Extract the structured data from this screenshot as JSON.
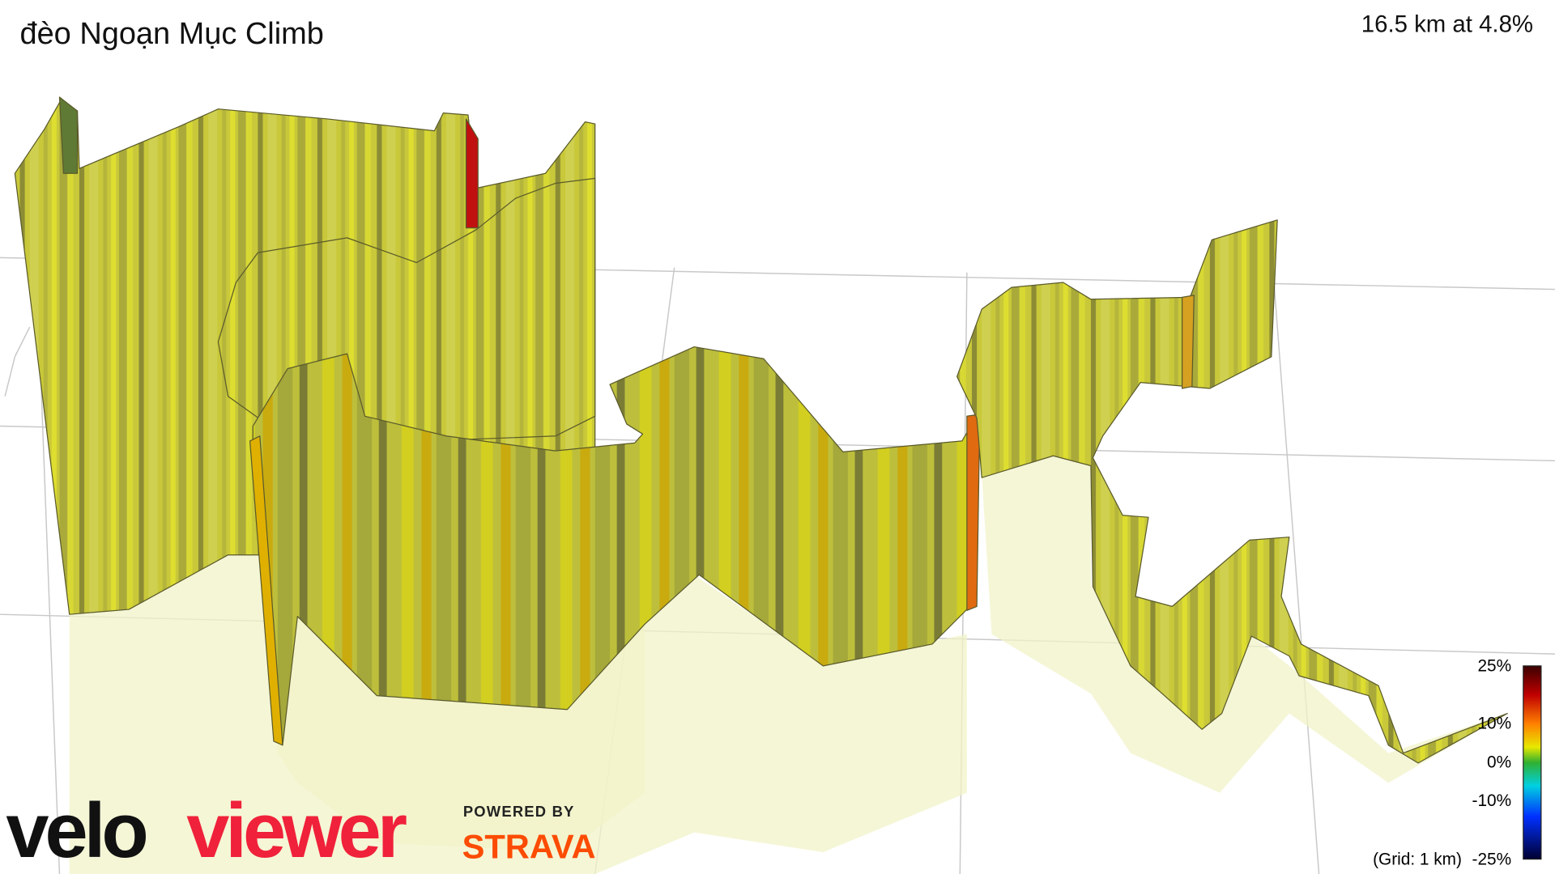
{
  "header": {
    "title": "đèo Ngoạn Mục Climb",
    "summary": "16.5 km at 4.8%"
  },
  "legend": {
    "ticks": [
      "25%",
      "10%",
      "0%",
      "-10%",
      "-25%"
    ],
    "grid_note": "(Grid: 1 km)"
  },
  "branding": {
    "logo_left": "velo",
    "logo_right": "viewer",
    "powered_by": "POWERED BY",
    "partner": "STRAVA"
  }
}
